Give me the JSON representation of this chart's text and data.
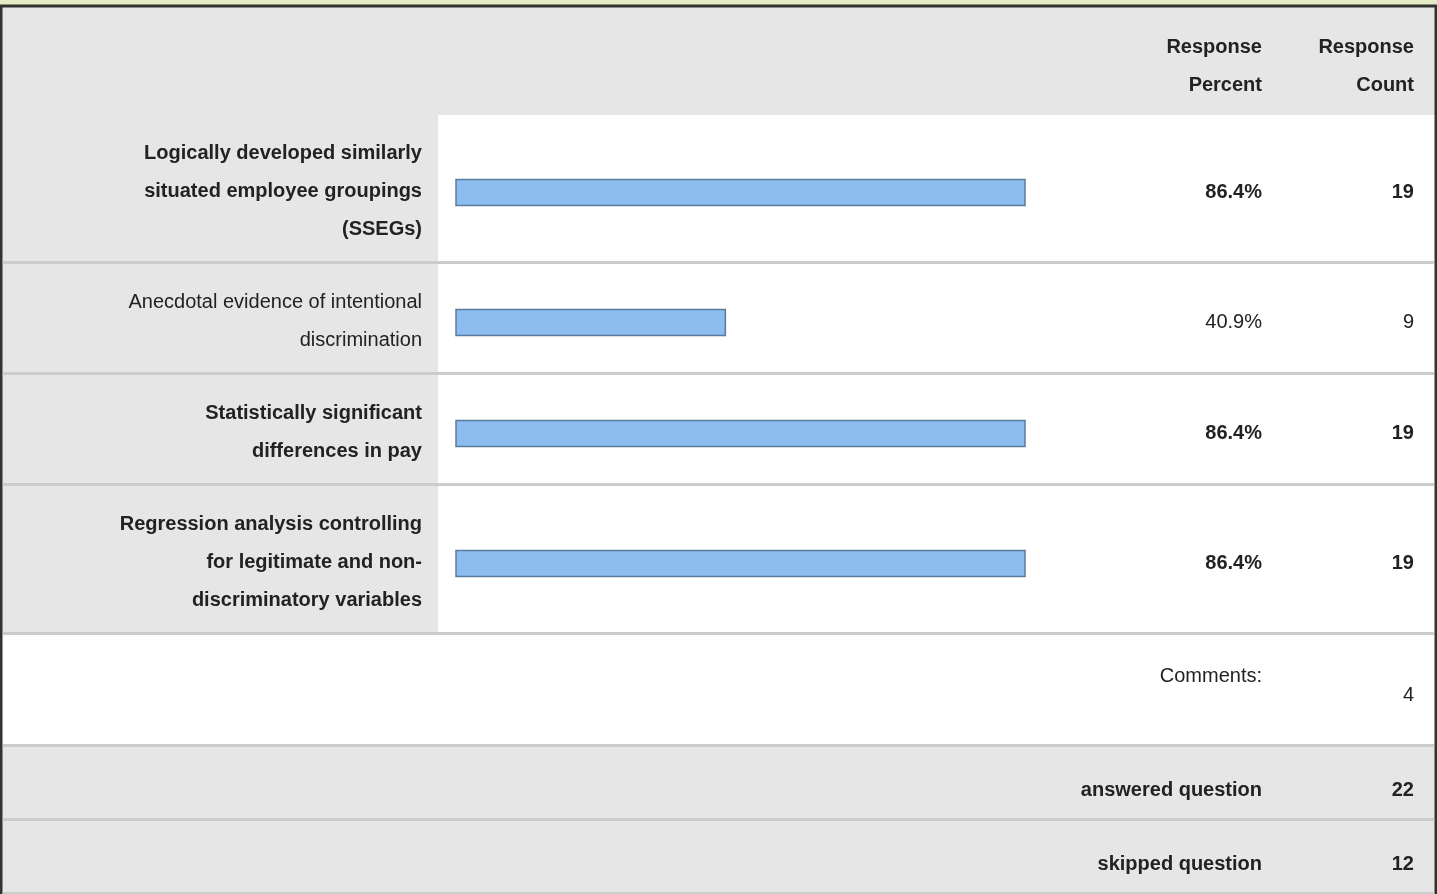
{
  "chart_data": {
    "type": "bar",
    "orientation": "horizontal",
    "categories": [
      "Logically developed similarly situated employee groupings (SSEGs)",
      "Anecdotal evidence of intentional discrimination",
      "Statistically significant differences in pay",
      "Regression analysis controlling for legitimate and non-discriminatory variables"
    ],
    "values": [
      86.4,
      40.9,
      86.4,
      86.4
    ],
    "value_labels": [
      "86.4%",
      "40.9%",
      "86.4%",
      "86.4%"
    ],
    "color": "#8cbcf0",
    "annotations": [
      "Response Percent",
      "Response Count",
      "19",
      "9",
      "19",
      "19",
      "Comments:",
      "4",
      "answered question",
      "22",
      "skipped question",
      "12"
    ]
  }
}
